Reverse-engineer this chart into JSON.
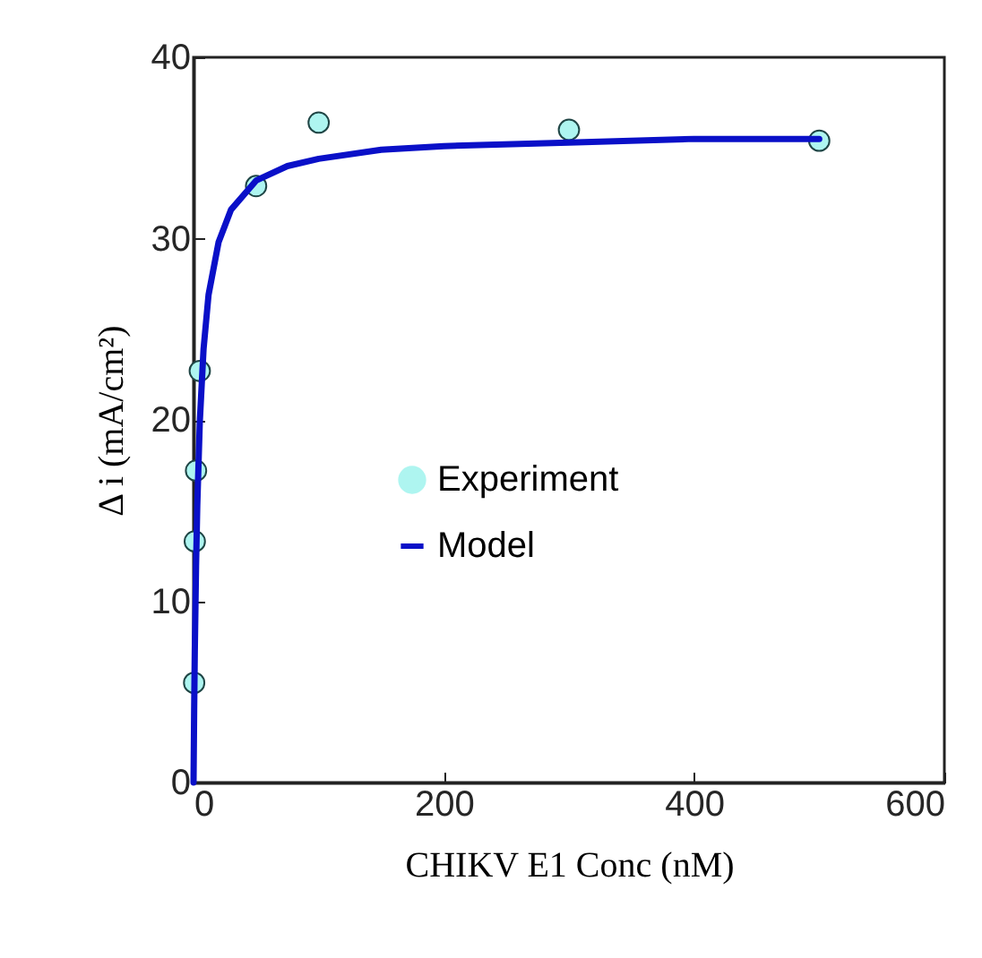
{
  "chart_data": {
    "type": "scatter",
    "xlabel": "CHIKV E1 Conc (nM)",
    "ylabel": "Δ i (mA/cm²)",
    "xlim": [
      0,
      600
    ],
    "ylim": [
      0,
      40
    ],
    "xticks": [
      0,
      200,
      400,
      600
    ],
    "yticks": [
      0,
      10,
      20,
      30,
      40
    ],
    "grid": false,
    "legend": "bottom left",
    "series": [
      {
        "name": "Experiment",
        "marker": "circle",
        "color": "#aef5f0",
        "x": [
          0.5,
          1,
          2,
          5,
          50,
          100,
          300,
          500
        ],
        "values": [
          5.5,
          13.3,
          17.2,
          22.7,
          32.9,
          36.4,
          36.0,
          35.4
        ]
      },
      {
        "name": "Model",
        "type": "line",
        "marker": "none",
        "line_style": "solid",
        "color": "#0a10c8",
        "x": [
          0,
          0.5,
          1,
          2,
          3,
          5,
          8,
          12,
          20,
          30,
          50,
          75,
          100,
          150,
          200,
          300,
          400,
          500
        ],
        "values": [
          0,
          4,
          7.2,
          11.9,
          15.3,
          19.9,
          23.9,
          26.9,
          29.8,
          31.6,
          33.2,
          34,
          34.4,
          34.9,
          35.1,
          35.3,
          35.5,
          35.5
        ]
      }
    ]
  }
}
